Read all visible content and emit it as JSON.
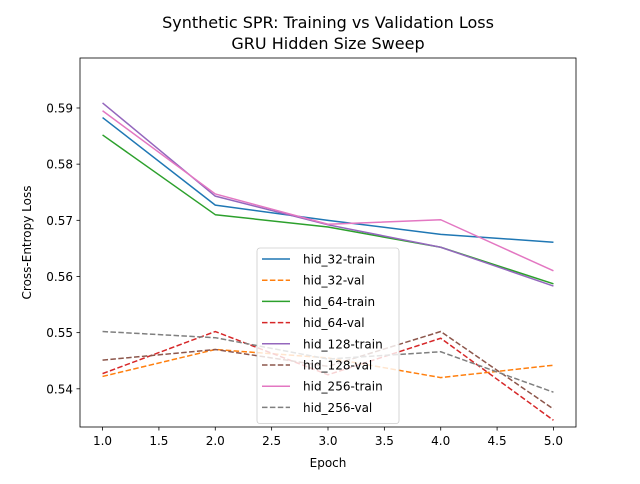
{
  "chart_data": {
    "type": "line",
    "title": [
      "Synthetic SPR: Training vs Validation Loss",
      "GRU Hidden Size Sweep"
    ],
    "xlabel": "Epoch",
    "ylabel": "Cross-Entropy Loss",
    "xlim": [
      0.8,
      5.2
    ],
    "ylim": [
      0.5332,
      0.5989
    ],
    "xticks": [
      1.0,
      1.5,
      2.0,
      2.5,
      3.0,
      3.5,
      4.0,
      4.5,
      5.0
    ],
    "xtick_labels": [
      "1.0",
      "1.5",
      "2.0",
      "2.5",
      "3.0",
      "3.5",
      "4.0",
      "4.5",
      "5.0"
    ],
    "yticks": [
      0.54,
      0.55,
      0.56,
      0.57,
      0.58,
      0.59
    ],
    "ytick_labels": [
      "0.54",
      "0.55",
      "0.56",
      "0.57",
      "0.58",
      "0.59"
    ],
    "grid": false,
    "legend_position": "bottom-center",
    "x": [
      1,
      2,
      3,
      4,
      5
    ],
    "series": [
      {
        "name": "hid_32-train",
        "color": "#1f77b4",
        "dash": "solid",
        "values": [
          0.5883,
          0.5727,
          0.57,
          0.5675,
          0.5661
        ]
      },
      {
        "name": "hid_32-val",
        "color": "#ff7f0e",
        "dash": "dashed",
        "values": [
          0.5422,
          0.547,
          0.5455,
          0.542,
          0.5442
        ]
      },
      {
        "name": "hid_64-train",
        "color": "#2ca02c",
        "dash": "solid",
        "values": [
          0.5852,
          0.571,
          0.5688,
          0.5652,
          0.5587
        ]
      },
      {
        "name": "hid_64-val",
        "color": "#d62728",
        "dash": "dashed",
        "values": [
          0.5427,
          0.5502,
          0.5425,
          0.549,
          0.5344
        ]
      },
      {
        "name": "hid_128-train",
        "color": "#9467bd",
        "dash": "solid",
        "values": [
          0.5909,
          0.5743,
          0.5692,
          0.5652,
          0.5583
        ]
      },
      {
        "name": "hid_128-val",
        "color": "#8c564b",
        "dash": "dashed",
        "values": [
          0.5451,
          0.547,
          0.544,
          0.5502,
          0.5364
        ]
      },
      {
        "name": "hid_256-train",
        "color": "#e377c2",
        "dash": "solid",
        "values": [
          0.5895,
          0.5747,
          0.5693,
          0.5701,
          0.561
        ]
      },
      {
        "name": "hid_256-val",
        "color": "#7f7f7f",
        "dash": "dashed",
        "values": [
          0.5502,
          0.5491,
          0.5453,
          0.5466,
          0.5394
        ]
      }
    ]
  }
}
